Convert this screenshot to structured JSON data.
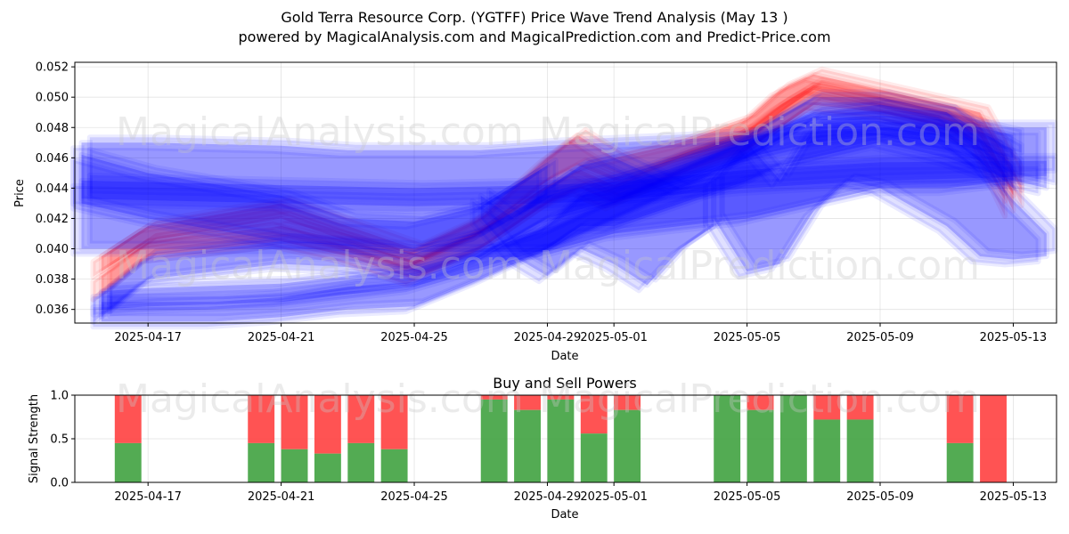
{
  "title": "Gold Terra Resource Corp. (YGTFF) Price Wave Trend Analysis (May 13 )",
  "subtitle": "powered by MagicalAnalysis.com and MagicalPrediction.com and Predict-Price.com",
  "watermarks": [
    "MagicalAnalysis.com",
    "MagicalPrediction.com"
  ],
  "colors": {
    "red": "#ff0000",
    "blue": "#0000ff",
    "buy": "#4aa64a",
    "sell": "#ff4a4a"
  },
  "chart_data": [
    {
      "type": "line",
      "name": "price-wave-chart",
      "xlabel": "Date",
      "ylabel": "Price",
      "xlim": [
        -2.2,
        27.3
      ],
      "ylim": [
        0.0351,
        0.0523
      ],
      "x_ticks": [
        {
          "day": 0,
          "label": "2025-04-17"
        },
        {
          "day": 4,
          "label": "2025-04-21"
        },
        {
          "day": 8,
          "label": "2025-04-25"
        },
        {
          "day": 12,
          "label": "2025-04-29"
        },
        {
          "day": 14,
          "label": "2025-05-01"
        },
        {
          "day": 18,
          "label": "2025-05-05"
        },
        {
          "day": 22,
          "label": "2025-05-09"
        },
        {
          "day": 26,
          "label": "2025-05-13"
        }
      ],
      "y_ticks": [
        {
          "v": 0.036,
          "label": "0.036"
        },
        {
          "v": 0.038,
          "label": "0.038"
        },
        {
          "v": 0.04,
          "label": "0.040"
        },
        {
          "v": 0.042,
          "label": "0.042"
        },
        {
          "v": 0.044,
          "label": "0.044"
        },
        {
          "v": 0.046,
          "label": "0.046"
        },
        {
          "v": 0.048,
          "label": "0.048"
        },
        {
          "v": 0.05,
          "label": "0.050"
        },
        {
          "v": 0.052,
          "label": "0.052"
        }
      ],
      "red_bands": [
        {
          "x": [
            -1.4,
            0,
            4,
            6,
            8,
            10,
            12,
            12.9,
            14,
            16,
            18,
            19,
            20,
            22,
            24,
            25,
            26
          ],
          "lo": [
            0.0385,
            0.0405,
            0.042,
            0.0405,
            0.039,
            0.041,
            0.0445,
            0.0455,
            0.0445,
            0.046,
            0.047,
            0.049,
            0.0505,
            0.0495,
            0.0485,
            0.0475,
            0.0435
          ],
          "hi": [
            0.0395,
            0.0415,
            0.043,
            0.0415,
            0.04,
            0.042,
            0.046,
            0.0475,
            0.046,
            0.047,
            0.0485,
            0.0505,
            0.0515,
            0.0505,
            0.0495,
            0.049,
            0.045
          ]
        },
        {
          "x": [
            -1.4,
            0,
            4,
            6,
            8,
            10,
            12,
            13,
            14,
            16,
            18,
            19,
            20,
            22,
            24,
            25,
            26
          ],
          "lo": [
            0.037,
            0.0395,
            0.0405,
            0.0395,
            0.038,
            0.04,
            0.043,
            0.044,
            0.043,
            0.045,
            0.0465,
            0.048,
            0.0495,
            0.049,
            0.048,
            0.047,
            0.0425
          ],
          "hi": [
            0.0382,
            0.0405,
            0.0415,
            0.0405,
            0.0392,
            0.0412,
            0.0442,
            0.0452,
            0.0442,
            0.0462,
            0.0478,
            0.0495,
            0.0508,
            0.05,
            0.049,
            0.0482,
            0.0438
          ]
        }
      ],
      "blue_bands": [
        {
          "x": [
            -2,
            0,
            4,
            6,
            8,
            10,
            12,
            14,
            16,
            18,
            20,
            22,
            24,
            26,
            27
          ],
          "lo": [
            0.04,
            0.04,
            0.04,
            0.04,
            0.0398,
            0.0398,
            0.0398,
            0.041,
            0.0415,
            0.042,
            0.043,
            0.044,
            0.044,
            0.0445,
            0.044
          ],
          "hi": [
            0.047,
            0.047,
            0.0468,
            0.0465,
            0.0465,
            0.0465,
            0.0468,
            0.047,
            0.0472,
            0.0475,
            0.0478,
            0.048,
            0.048,
            0.048,
            0.048
          ]
        },
        {
          "x": [
            -2,
            0,
            4,
            8,
            12,
            14,
            18,
            22,
            27
          ],
          "lo": [
            0.0433,
            0.0432,
            0.043,
            0.0428,
            0.043,
            0.0432,
            0.044,
            0.0445,
            0.0448
          ],
          "hi": [
            0.0445,
            0.0444,
            0.0442,
            0.044,
            0.0442,
            0.0444,
            0.0452,
            0.0457,
            0.0458
          ]
        },
        {
          "x": [
            -1.4,
            0,
            2,
            4,
            6,
            8,
            10,
            12,
            13,
            14,
            16,
            18,
            19,
            20,
            22,
            24,
            26
          ],
          "lo": [
            0.0352,
            0.0352,
            0.0352,
            0.0355,
            0.036,
            0.0362,
            0.038,
            0.04,
            0.0415,
            0.0415,
            0.043,
            0.0445,
            0.0455,
            0.046,
            0.047,
            0.046,
            0.0445
          ],
          "hi": [
            0.0365,
            0.0365,
            0.0365,
            0.0368,
            0.0375,
            0.0378,
            0.0395,
            0.0415,
            0.0435,
            0.044,
            0.0455,
            0.047,
            0.048,
            0.049,
            0.0495,
            0.049,
            0.0465
          ]
        },
        {
          "x": [
            -1.4,
            0,
            4,
            6,
            8,
            10,
            12,
            14,
            16,
            18,
            20,
            22,
            24,
            26
          ],
          "lo": [
            0.0355,
            0.038,
            0.039,
            0.0388,
            0.0382,
            0.0395,
            0.042,
            0.0432,
            0.0445,
            0.046,
            0.0485,
            0.0485,
            0.0475,
            0.044
          ],
          "hi": [
            0.037,
            0.0395,
            0.0405,
            0.0403,
            0.0397,
            0.041,
            0.0435,
            0.0447,
            0.046,
            0.0475,
            0.05,
            0.05,
            0.049,
            0.0455
          ]
        },
        {
          "x": [
            -1.4,
            0,
            4,
            8,
            12,
            14,
            18,
            20,
            22,
            24,
            26
          ],
          "lo": [
            0.036,
            0.0362,
            0.0365,
            0.0375,
            0.04,
            0.042,
            0.046,
            0.047,
            0.0475,
            0.047,
            0.046
          ],
          "hi": [
            0.0372,
            0.0374,
            0.0377,
            0.0387,
            0.0412,
            0.0432,
            0.0472,
            0.0485,
            0.0488,
            0.0485,
            0.0475
          ]
        },
        {
          "x": [
            -2,
            0,
            4,
            6,
            8,
            10,
            12
          ],
          "lo": [
            0.043,
            0.042,
            0.0405,
            0.0402,
            0.04,
            0.041,
            0.0435
          ],
          "hi": [
            0.0462,
            0.045,
            0.0435,
            0.042,
            0.0418,
            0.0428,
            0.0455
          ]
        },
        {
          "x": [
            10,
            11,
            12,
            13,
            14,
            15,
            16,
            17
          ],
          "lo": [
            0.042,
            0.0395,
            0.0382,
            0.04,
            0.039,
            0.0376,
            0.04,
            0.0415
          ],
          "hi": [
            0.0435,
            0.042,
            0.044,
            0.0455,
            0.046,
            0.045,
            0.044,
            0.0445
          ]
        },
        {
          "x": [
            17,
            18,
            19,
            20,
            21,
            22,
            24,
            25,
            26,
            27
          ],
          "lo": [
            0.042,
            0.0385,
            0.039,
            0.0425,
            0.0445,
            0.044,
            0.0415,
            0.0395,
            0.0393,
            0.0395
          ],
          "hi": [
            0.0445,
            0.047,
            0.0445,
            0.048,
            0.0482,
            0.048,
            0.0475,
            0.046,
            0.0432,
            0.041
          ]
        }
      ]
    },
    {
      "type": "bar",
      "name": "buy-sell-chart",
      "title": "Buy and Sell Powers",
      "xlabel": "Date",
      "ylabel": "Signal Strength",
      "xlim": [
        -2.2,
        27.3
      ],
      "ylim": [
        0,
        1
      ],
      "x_ticks": [
        {
          "day": 0,
          "label": "2025-04-17"
        },
        {
          "day": 4,
          "label": "2025-04-21"
        },
        {
          "day": 8,
          "label": "2025-04-25"
        },
        {
          "day": 12,
          "label": "2025-04-29"
        },
        {
          "day": 14,
          "label": "2025-05-01"
        },
        {
          "day": 18,
          "label": "2025-05-05"
        },
        {
          "day": 22,
          "label": "2025-05-09"
        },
        {
          "day": 26,
          "label": "2025-05-13"
        }
      ],
      "y_ticks": [
        {
          "v": 0.0,
          "label": "0.0"
        },
        {
          "v": 0.5,
          "label": "0.5"
        },
        {
          "v": 1.0,
          "label": "1.0"
        }
      ],
      "bars": [
        {
          "day": -0.6,
          "buy": 0.45
        },
        {
          "day": 3.4,
          "buy": 0.45
        },
        {
          "day": 4.4,
          "buy": 0.38
        },
        {
          "day": 5.4,
          "buy": 0.33
        },
        {
          "day": 6.4,
          "buy": 0.45
        },
        {
          "day": 7.4,
          "buy": 0.38
        },
        {
          "day": 10.4,
          "buy": 0.95
        },
        {
          "day": 11.4,
          "buy": 0.83
        },
        {
          "day": 12.4,
          "buy": 0.95
        },
        {
          "day": 13.4,
          "buy": 0.56
        },
        {
          "day": 14.4,
          "buy": 0.83
        },
        {
          "day": 17.4,
          "buy": 1.0
        },
        {
          "day": 18.4,
          "buy": 0.83
        },
        {
          "day": 19.4,
          "buy": 1.0
        },
        {
          "day": 20.4,
          "buy": 0.72
        },
        {
          "day": 21.4,
          "buy": 0.72
        },
        {
          "day": 24.4,
          "buy": 0.45
        },
        {
          "day": 25.4,
          "buy": 0.0
        }
      ]
    }
  ]
}
